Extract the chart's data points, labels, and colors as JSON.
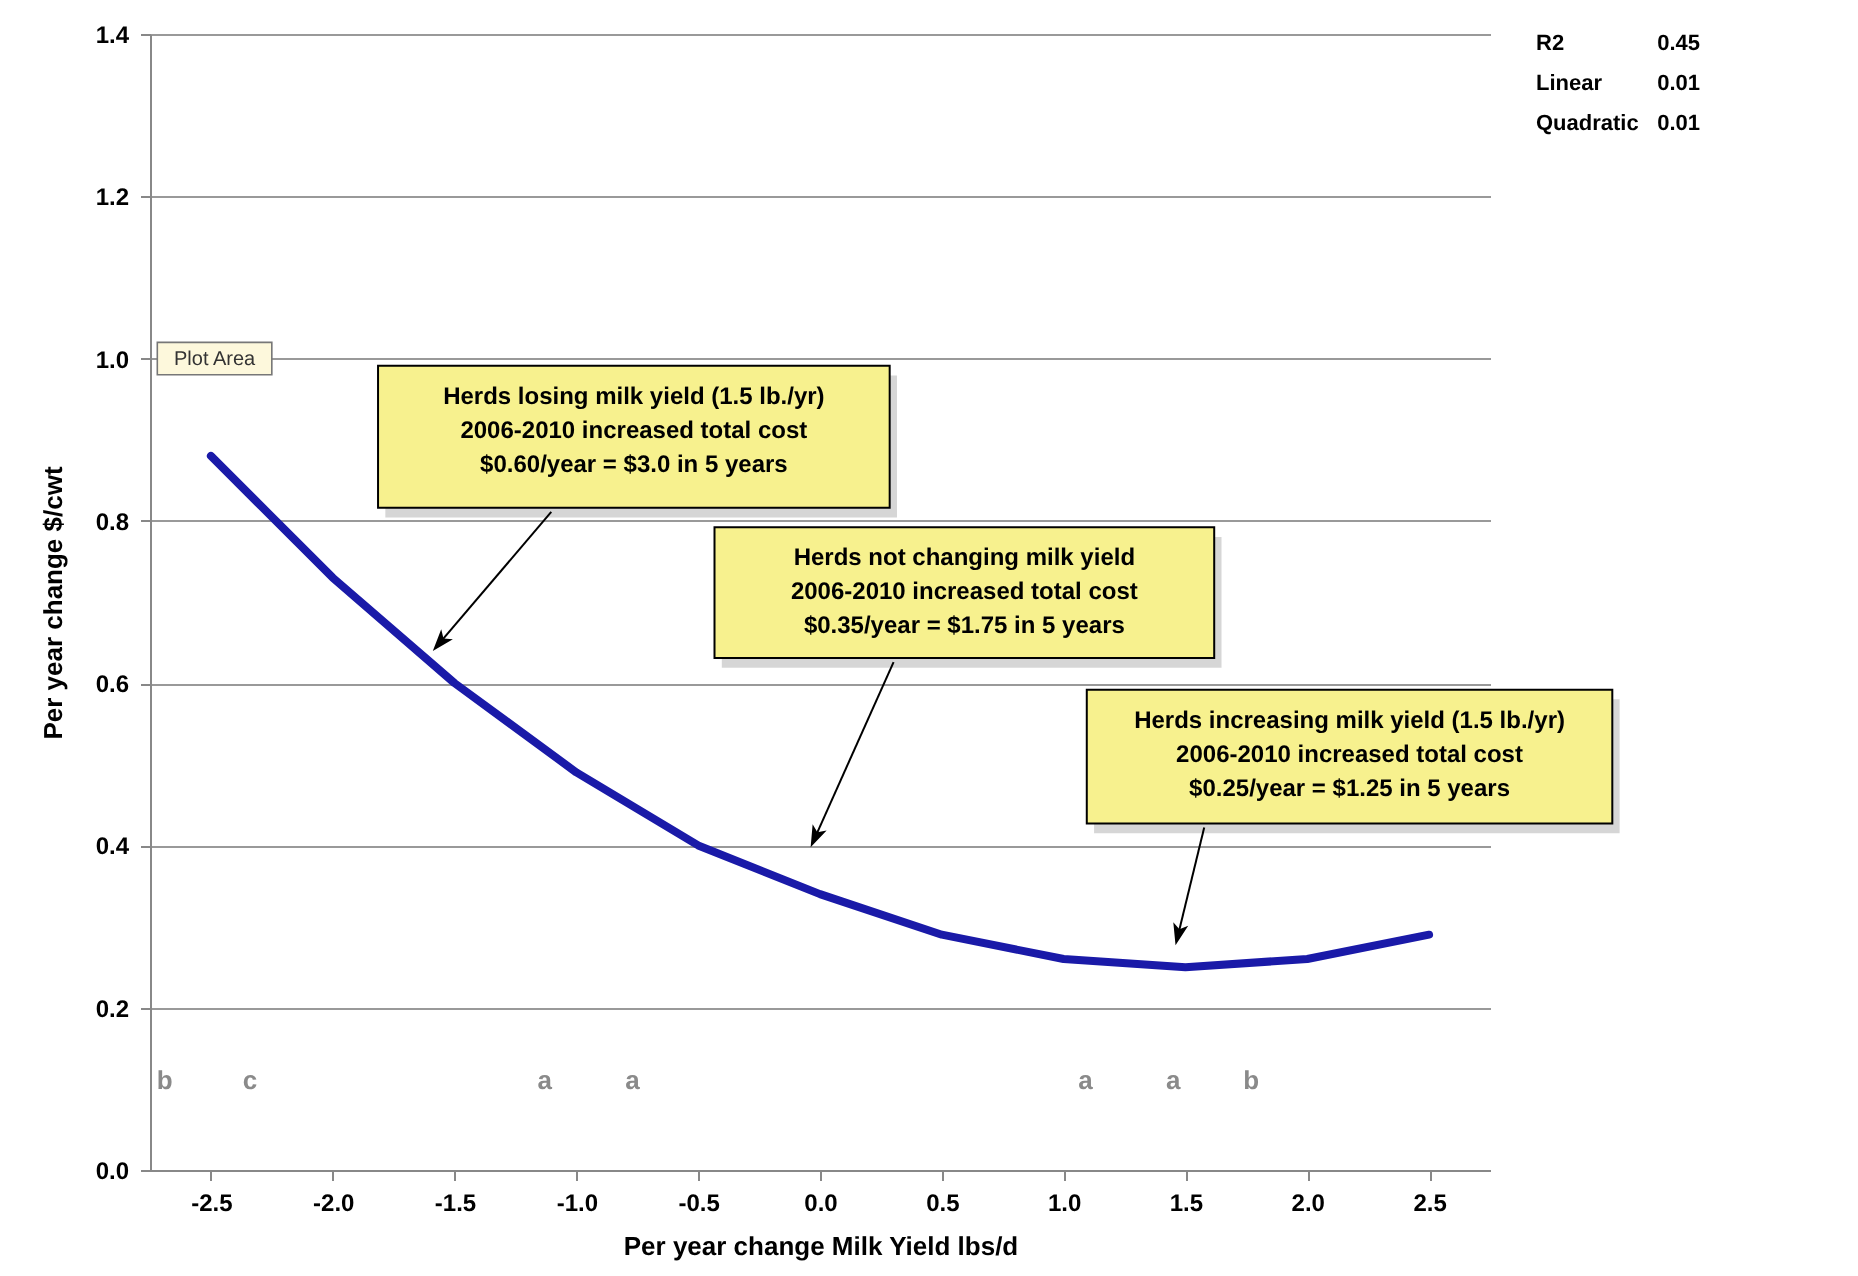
{
  "chart_data": {
    "type": "line",
    "xlabel": "Per year change Milk Yield lbs/d",
    "ylabel": "Per year change $/cwt",
    "x": [
      -2.5,
      -2.0,
      -1.5,
      -1.0,
      -0.5,
      0.0,
      0.5,
      1.0,
      1.5,
      2.0,
      2.5
    ],
    "series": [
      {
        "color": "#1a1aa8",
        "values": [
          0.88,
          0.73,
          0.6,
          0.49,
          0.4,
          0.34,
          0.29,
          0.26,
          0.25,
          0.26,
          0.29
        ]
      }
    ],
    "xlim": [
      -2.75,
      2.75
    ],
    "ylim": [
      0,
      1.4
    ],
    "xticks": [
      {
        "value": -2.5,
        "label": "-2.5"
      },
      {
        "value": -2.0,
        "label": "-2.0"
      },
      {
        "value": -1.5,
        "label": "-1.5"
      },
      {
        "value": -1.0,
        "label": "-1.0"
      },
      {
        "value": -0.5,
        "label": "-0.5"
      },
      {
        "value": 0,
        "label": "0.0"
      },
      {
        "value": 0.5,
        "label": "0.5"
      },
      {
        "value": 1.0,
        "label": "1.0"
      },
      {
        "value": 1.5,
        "label": "1.5"
      },
      {
        "value": 2.0,
        "label": "2.0"
      },
      {
        "value": 2.5,
        "label": "2.5"
      }
    ],
    "yticks": [
      {
        "value": 0,
        "label": "0.0"
      },
      {
        "value": 0.2,
        "label": "0.2"
      },
      {
        "value": 0.4,
        "label": "0.4"
      },
      {
        "value": 0.6,
        "label": "0.6"
      },
      {
        "value": 0.8,
        "label": "0.8"
      },
      {
        "value": 1.0,
        "label": "1.0"
      },
      {
        "value": 1.2,
        "label": "1.2"
      },
      {
        "value": 1.4,
        "label": "1.4"
      }
    ],
    "grid": "y",
    "line_style": "solid",
    "marker": "none",
    "annotations": [
      "Herds losing milk yield (1.5 lb./yr)\n2006-2010 increased total cost\n$0.60/year = $3.0 in 5 years",
      {
        "text": "Herds not changing milk yield\n2006-2010 increased total cost\n$0.35/year = $1.75 in 5 years",
        "x": -0.02,
        "y": 0.41
      },
      {
        "text": "Herds increasing milk yield (1.5 lb./yr)\n2006-2010 increased total cost\n$0.25/year = $1.25 in 5 years",
        "x": 1.47,
        "y": 0.29
      },
      "R2",
      "0.45",
      "Linear",
      "0.01",
      "Quadratic",
      "0.01",
      "Plot Area",
      "b",
      "c",
      "a",
      "a",
      "a",
      "a",
      "b"
    ]
  }
}
